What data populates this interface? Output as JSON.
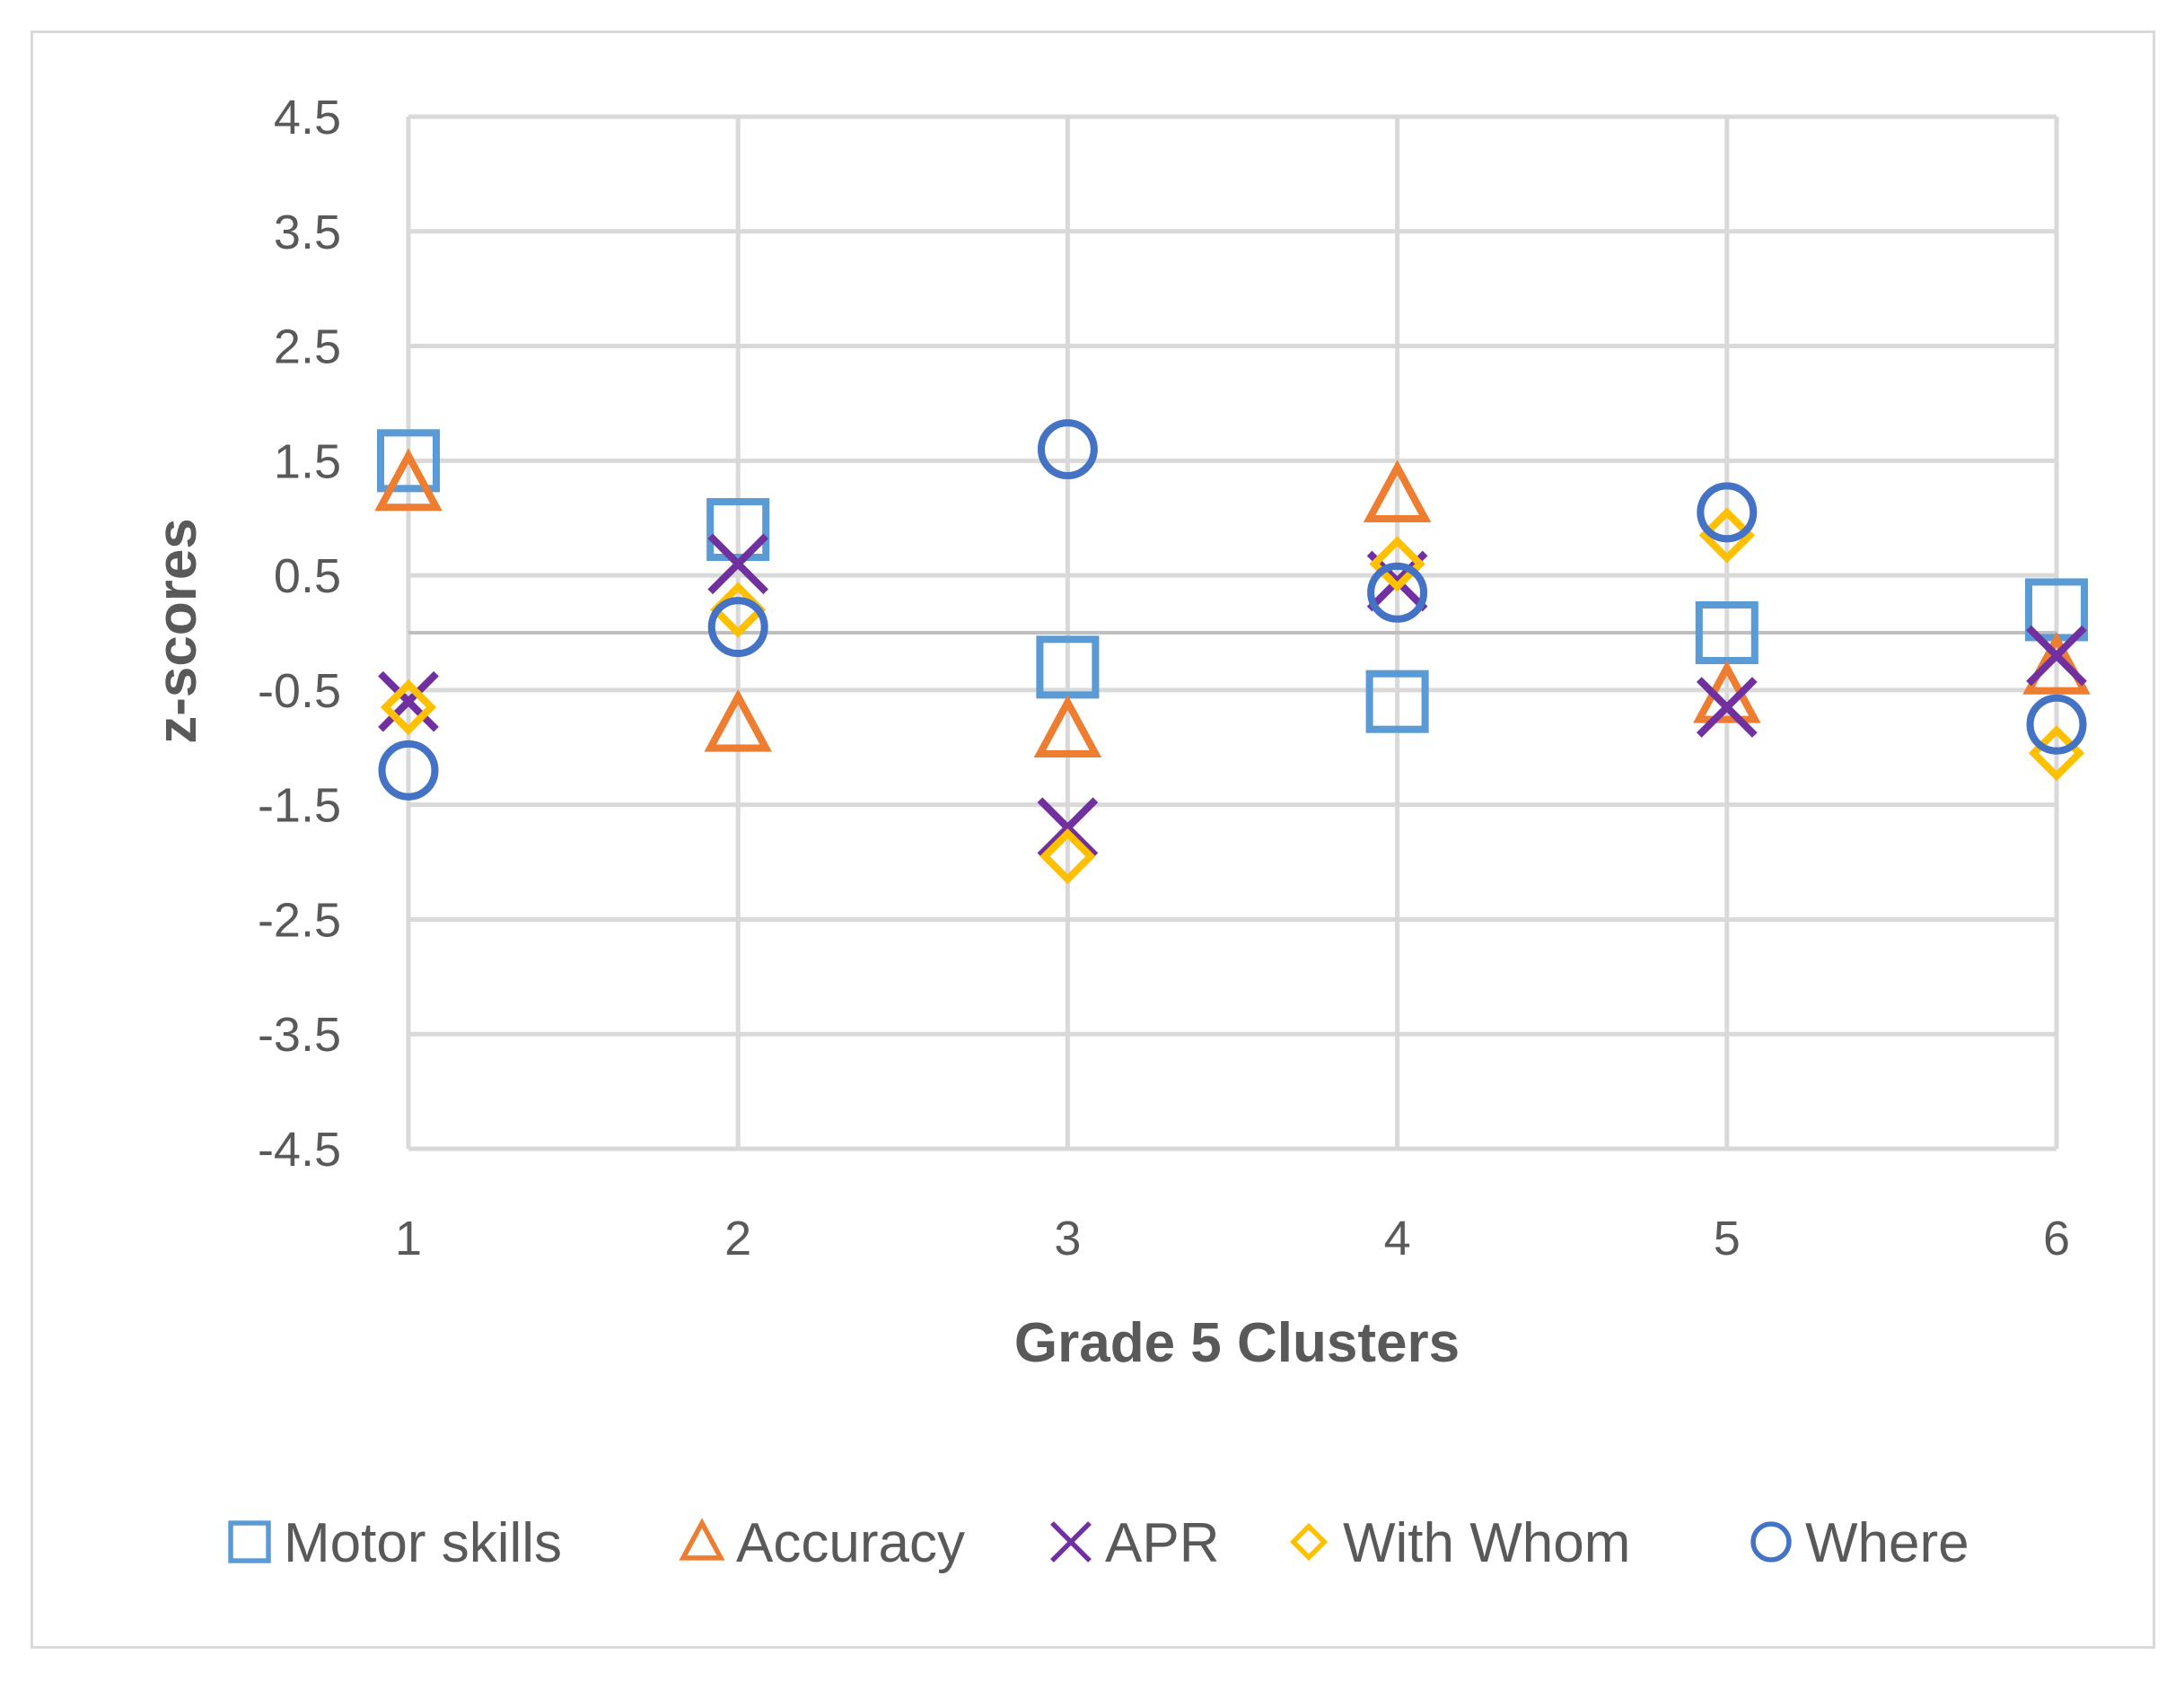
{
  "chart_data": {
    "type": "scatter",
    "title": "",
    "xlabel": "Grade 5 Clusters",
    "ylabel": "z-scores",
    "categories": [
      "1",
      "2",
      "3",
      "4",
      "5",
      "6"
    ],
    "yticks": [
      "4.5",
      "3.5",
      "2.5",
      "1.5",
      "0.5",
      "-0.5",
      "-1.5",
      "-2.5",
      "-3.5",
      "-4.5"
    ],
    "ylim": [
      -4.5,
      4.5
    ],
    "grid": true,
    "legend_position": "bottom",
    "series": [
      {
        "name": "Motor skills",
        "marker": "square",
        "color": "#5b9bd5",
        "values": [
          1.5,
          0.9,
          -0.3,
          -0.6,
          0.0,
          0.2
        ]
      },
      {
        "name": "Accuracy",
        "marker": "triangle",
        "color": "#ed7d31",
        "values": [
          1.3,
          -0.8,
          -0.85,
          1.2,
          -0.55,
          -0.3
        ]
      },
      {
        "name": "APR",
        "marker": "x",
        "color": "#7030a0",
        "values": [
          -0.6,
          0.6,
          -1.7,
          0.45,
          -0.65,
          -0.2
        ]
      },
      {
        "name": "With Whom",
        "marker": "diamond",
        "color": "#ffc000",
        "values": [
          -0.65,
          0.2,
          -1.95,
          0.6,
          0.85,
          -1.05
        ]
      },
      {
        "name": "Where",
        "marker": "circle",
        "color": "#4472c4",
        "values": [
          -1.2,
          0.05,
          1.6,
          0.35,
          1.05,
          -0.8
        ]
      }
    ]
  }
}
